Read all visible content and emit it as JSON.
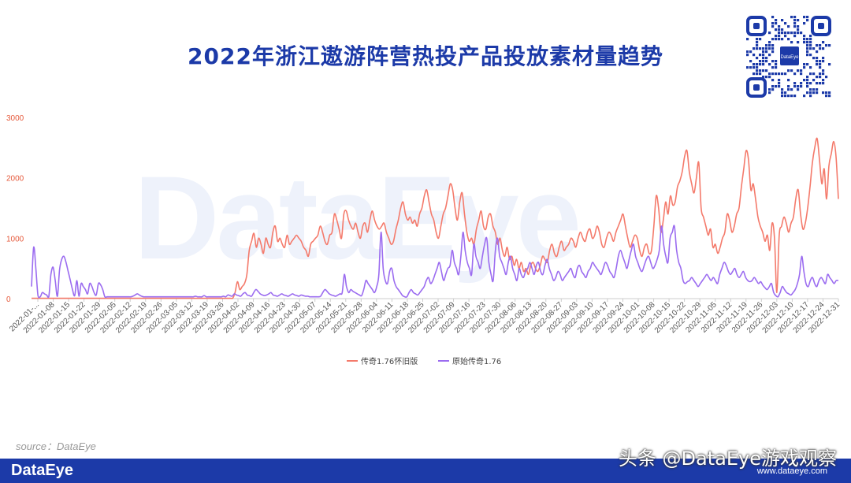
{
  "page": {
    "title": "2022年浙江遨游阵营热投产品投放素材量趋势",
    "source": "source：DataEye",
    "footer_brand": "DataEye",
    "qr_label": "DataEye",
    "watermark": "DataEye",
    "toutiao": "头条 @DataEye游戏观察",
    "site": "www.dataeye.com"
  },
  "colors": {
    "accent": "#1c3aa8",
    "series1": "#f47a6b",
    "series2": "#9b6cf0"
  },
  "chart_data": {
    "type": "line",
    "ylim": [
      0,
      3000
    ],
    "yticks": [
      "0",
      "1000",
      "2000",
      "3000"
    ],
    "xlabels": [
      "2022-01-...",
      "2022-01-08",
      "2022-01-15",
      "2022-01-22",
      "2022-01-29",
      "2022-02-05",
      "2022-02-12",
      "2022-02-19",
      "2022-02-26",
      "2022-03-05",
      "2022-03-12",
      "2022-03-19",
      "2022-03-26",
      "2022-04-02",
      "2022-04-09",
      "2022-04-16",
      "2022-04-23",
      "2022-04-30",
      "2022-05-07",
      "2022-05-14",
      "2022-05-21",
      "2022-05-28",
      "2022-06-04",
      "2022-06-11",
      "2022-06-18",
      "2022-06-25",
      "2022-07-02",
      "2022-07-09",
      "2022-07-16",
      "2022-07-23",
      "2022-07-30",
      "2022-08-06",
      "2022-08-13",
      "2022-08-20",
      "2022-08-27",
      "2022-09-03",
      "2022-09-10",
      "2022-09-17",
      "2022-09-24",
      "2022-10-01",
      "2022-10-08",
      "2022-10-15",
      "2022-10-22",
      "2022-10-29",
      "2022-11-05",
      "2022-11-12",
      "2022-11-19",
      "2022-11-26",
      "2022-12-03",
      "2022-12-10",
      "2022-12-17",
      "2022-12-24",
      "2022-12-31"
    ],
    "legend_position": "bottom",
    "series": [
      {
        "name": "传奇1.76怀旧版",
        "color": "#f47a6b",
        "values": [
          5,
          5,
          5,
          5,
          5,
          5,
          5,
          5,
          5,
          5,
          5,
          5,
          5,
          5,
          5,
          5,
          5,
          5,
          5,
          5,
          5,
          5,
          5,
          5,
          5,
          5,
          5,
          5,
          5,
          5,
          5,
          5,
          5,
          5,
          5,
          5,
          5,
          5,
          5,
          5,
          5,
          5,
          5,
          5,
          5,
          5,
          5,
          5,
          5,
          5,
          5,
          5,
          5,
          5,
          5,
          5,
          5,
          5,
          5,
          5,
          5,
          5,
          5,
          5,
          5,
          5,
          5,
          5,
          5,
          5,
          5,
          5,
          5,
          5,
          5,
          5,
          5,
          5,
          5,
          5,
          5,
          5,
          5,
          5,
          5,
          5,
          100,
          280,
          150,
          200,
          250,
          400,
          800,
          950,
          1080,
          850,
          1000,
          900,
          750,
          1000,
          900,
          850,
          1100,
          1200,
          950,
          1000,
          900,
          850,
          1050,
          900,
          950,
          1000,
          1050,
          1000,
          950,
          850,
          800,
          700,
          900,
          950,
          1000,
          1050,
          1200,
          1100,
          950,
          900,
          1050,
          1100,
          1400,
          1300,
          1150,
          1000,
          1400,
          1450,
          1300,
          1200,
          1150,
          1250,
          1100,
          1000,
          1200,
          1250,
          1100,
          1300,
          1450,
          1300,
          1200,
          1150,
          1200,
          1250,
          1100,
          1000,
          900,
          950,
          1150,
          1300,
          1500,
          1600,
          1400,
          1300,
          1350,
          1250,
          1300,
          1200,
          1400,
          1500,
          1700,
          1800,
          1600,
          1400,
          1300,
          1100,
          1000,
          1200,
          1400,
          1500,
          1700,
          1900,
          1800,
          1500,
          1300,
          1600,
          1750,
          1400,
          1100,
          950,
          1000,
          900,
          1150,
          1300,
          1450,
          1200,
          1150,
          1350,
          1400,
          1200,
          1100,
          900,
          1000,
          800,
          700,
          850,
          650,
          700,
          550,
          650,
          500,
          600,
          450,
          500,
          400,
          550,
          600,
          500,
          450,
          550,
          700,
          650,
          600,
          800,
          900,
          750,
          700,
          850,
          950,
          800,
          850,
          900,
          1000,
          950,
          850,
          1000,
          1100,
          1000,
          950,
          1100,
          1150,
          1000,
          1050,
          1200,
          1100,
          900,
          850,
          1000,
          1100,
          1050,
          950,
          1100,
          1200,
          1300,
          1400,
          1200,
          1000,
          850,
          950,
          1050,
          1000,
          800,
          700,
          850,
          900,
          750,
          800,
          1200,
          1700,
          1500,
          1100,
          1300,
          1600,
          1400,
          1700,
          1550,
          1600,
          1850,
          1950,
          2100,
          2350,
          2450,
          2100,
          1900,
          1750,
          2000,
          2250,
          1500,
          1350,
          1200,
          1050,
          1150,
          850,
          900,
          750,
          850,
          1000,
          1100,
          1400,
          1300,
          1100,
          1200,
          1400,
          1500,
          1850,
          2150,
          2450,
          2300,
          1800,
          1900,
          1650,
          1350,
          1200,
          1100,
          950,
          1050,
          800,
          1250,
          1000,
          100,
          1050,
          1200,
          1350,
          1250,
          1100,
          1250,
          1350,
          1650,
          1800,
          1400,
          1150,
          1250,
          1500,
          1850,
          2250,
          2500,
          2650,
          2300,
          1900,
          2150,
          1650,
          2200,
          2400,
          2600,
          2350,
          1650
        ]
      },
      {
        "name": "原始传奇1.76",
        "color": "#9b6cf0",
        "values": [
          200,
          850,
          500,
          50,
          30,
          100,
          80,
          60,
          30,
          400,
          520,
          300,
          40,
          480,
          650,
          700,
          600,
          450,
          300,
          150,
          50,
          300,
          40,
          250,
          200,
          150,
          80,
          250,
          200,
          100,
          60,
          250,
          230,
          150,
          30,
          30,
          30,
          30,
          30,
          30,
          30,
          30,
          30,
          30,
          30,
          30,
          30,
          40,
          60,
          80,
          60,
          40,
          30,
          30,
          30,
          30,
          30,
          30,
          30,
          30,
          30,
          30,
          30,
          30,
          30,
          30,
          30,
          30,
          30,
          30,
          30,
          30,
          30,
          30,
          30,
          30,
          40,
          30,
          30,
          30,
          50,
          30,
          30,
          30,
          30,
          30,
          30,
          30,
          30,
          40,
          30,
          60,
          50,
          40,
          80,
          60,
          50,
          40,
          80,
          100,
          60,
          50,
          40,
          100,
          150,
          120,
          80,
          60,
          50,
          60,
          80,
          100,
          60,
          50,
          40,
          60,
          80,
          60,
          50,
          40,
          60,
          80,
          60,
          50,
          40,
          60,
          50,
          40,
          40,
          30,
          30,
          30,
          30,
          30,
          40,
          100,
          150,
          120,
          80,
          60,
          50,
          40,
          60,
          80,
          100,
          400,
          200,
          100,
          150,
          120,
          100,
          80,
          60,
          50,
          150,
          300,
          250,
          200,
          150,
          100,
          200,
          400,
          1100,
          500,
          300,
          250,
          450,
          500,
          300,
          200,
          150,
          100,
          50,
          30,
          30,
          100,
          150,
          100,
          80,
          60,
          100,
          150,
          200,
          300,
          350,
          250,
          300,
          400,
          500,
          600,
          450,
          300,
          400,
          500,
          550,
          800,
          600,
          500,
          400,
          700,
          1100,
          800,
          600,
          500,
          400,
          900,
          700,
          600,
          500,
          700,
          900,
          1000,
          600,
          400,
          300,
          800,
          1000,
          700,
          600,
          500,
          400,
          600,
          700,
          500,
          400,
          300,
          500,
          400,
          350,
          450,
          500,
          600,
          500,
          400,
          550,
          600,
          450,
          400,
          550,
          650,
          500,
          400,
          300,
          350,
          450,
          400,
          300,
          350,
          400,
          450,
          500,
          400,
          350,
          500,
          550,
          450,
          400,
          350,
          450,
          500,
          600,
          550,
          500,
          450,
          400,
          500,
          600,
          550,
          450,
          400,
          350,
          500,
          700,
          800,
          700,
          600,
          500,
          650,
          800,
          900,
          700,
          600,
          500,
          450,
          550,
          650,
          700,
          600,
          500,
          550,
          650,
          800,
          1200,
          900,
          700,
          600,
          1000,
          1100,
          1200,
          800,
          600,
          500,
          300,
          250,
          280,
          300,
          350,
          300,
          250,
          200,
          250,
          300,
          350,
          400,
          350,
          300,
          350,
          300,
          250,
          400,
          500,
          600,
          550,
          450,
          400,
          450,
          500,
          400,
          350,
          400,
          450,
          350,
          300,
          280,
          300,
          350,
          300,
          250,
          280,
          220,
          180,
          150,
          200,
          250,
          100,
          50,
          30,
          100,
          200,
          150,
          100,
          80,
          60,
          100,
          150,
          250,
          400,
          700,
          450,
          250,
          200,
          300,
          350,
          250,
          200,
          300,
          350,
          300,
          250,
          400,
          350,
          300,
          250,
          300,
          300
        ]
      }
    ]
  }
}
